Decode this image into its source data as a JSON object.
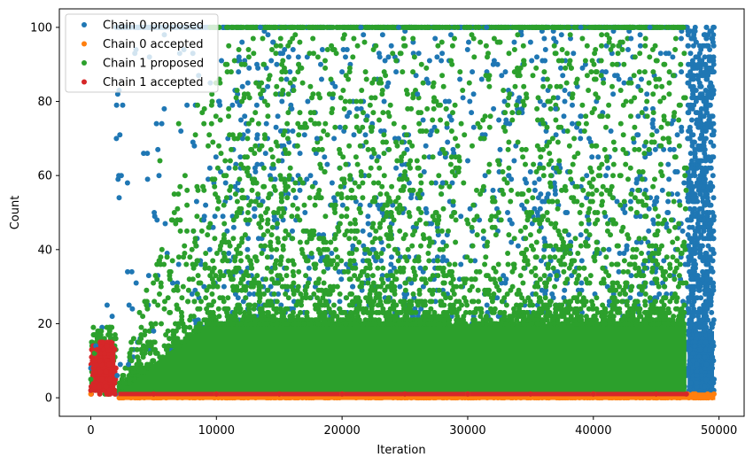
{
  "chart_data": {
    "type": "scatter",
    "title": "",
    "xlabel": "Iteration",
    "ylabel": "Count",
    "xlim": [
      -2500,
      52000
    ],
    "ylim": [
      -5,
      105
    ],
    "xticks": [
      0,
      10000,
      20000,
      30000,
      40000,
      50000
    ],
    "yticks": [
      0,
      20,
      40,
      60,
      80,
      100
    ],
    "grid": false,
    "legend_position": "top-left",
    "series": [
      {
        "name": "Chain 0 proposed",
        "color": "#1f77b4",
        "summary": "dense scatter of proposal counts; near-uniform spread over 1-100 between ~2000 and ~47500, concentrated block 1-60 between ~47500 and ~49600, early cluster 1-25 for 0-2000",
        "points": [
          [
            0,
            8
          ],
          [
            400,
            14
          ],
          [
            900,
            19
          ],
          [
            1300,
            25
          ],
          [
            1700,
            22
          ],
          [
            2100,
            6
          ],
          [
            3000,
            9
          ],
          [
            5000,
            18
          ],
          [
            7000,
            36
          ],
          [
            9000,
            48
          ],
          [
            11000,
            62
          ],
          [
            12500,
            85
          ],
          [
            13500,
            100
          ],
          [
            14500,
            96
          ],
          [
            16000,
            78
          ],
          [
            18000,
            70
          ],
          [
            20000,
            88
          ],
          [
            21500,
            100
          ],
          [
            23000,
            92
          ],
          [
            24500,
            100
          ],
          [
            26000,
            82
          ],
          [
            28000,
            58
          ],
          [
            30000,
            64
          ],
          [
            31500,
            100
          ],
          [
            33000,
            88
          ],
          [
            35000,
            96
          ],
          [
            37000,
            78
          ],
          [
            39000,
            100
          ],
          [
            41000,
            88
          ],
          [
            43000,
            97
          ],
          [
            44500,
            100
          ],
          [
            46000,
            93
          ],
          [
            47500,
            70
          ],
          [
            48000,
            55
          ],
          [
            48500,
            60
          ],
          [
            49000,
            100
          ],
          [
            49500,
            40
          ],
          [
            49600,
            100
          ]
        ]
      },
      {
        "name": "Chain 0 accepted",
        "color": "#ff7f0e",
        "summary": "accepted counts hug 0-1 across the full run to ~49600",
        "points": [
          [
            0,
            1
          ],
          [
            5000,
            0
          ],
          [
            10000,
            1
          ],
          [
            15000,
            0
          ],
          [
            20000,
            1
          ],
          [
            25000,
            0
          ],
          [
            30000,
            1
          ],
          [
            35000,
            0
          ],
          [
            40000,
            1
          ],
          [
            45000,
            0
          ],
          [
            47500,
            1
          ],
          [
            48500,
            0
          ],
          [
            49600,
            1
          ]
        ]
      },
      {
        "name": "Chain 1 proposed",
        "color": "#2ca02c",
        "summary": "dense scatter of proposal counts; solid mass 1-20 from ~2200 to ~47400, decreasing density up to 100; early cluster 1-19 for 0-2000",
        "points": [
          [
            0,
            5
          ],
          [
            300,
            12
          ],
          [
            800,
            18
          ],
          [
            1500,
            19
          ],
          [
            1900,
            16
          ],
          [
            2300,
            4
          ],
          [
            4000,
            13
          ],
          [
            5500,
            64
          ],
          [
            7000,
            74
          ],
          [
            8500,
            79
          ],
          [
            10000,
            100
          ],
          [
            12000,
            90
          ],
          [
            14000,
            100
          ],
          [
            15500,
            88
          ],
          [
            17500,
            77
          ],
          [
            19000,
            82
          ],
          [
            21000,
            100
          ],
          [
            22500,
            94
          ],
          [
            24000,
            100
          ],
          [
            25500,
            100
          ],
          [
            27500,
            80
          ],
          [
            29000,
            60
          ],
          [
            31000,
            55
          ],
          [
            32500,
            96
          ],
          [
            34500,
            90
          ],
          [
            36000,
            84
          ],
          [
            38000,
            100
          ],
          [
            40000,
            100
          ],
          [
            42000,
            95
          ],
          [
            44000,
            100
          ],
          [
            45500,
            100
          ],
          [
            47000,
            100
          ],
          [
            47400,
            62
          ]
        ]
      },
      {
        "name": "Chain 1 accepted",
        "color": "#d62728",
        "summary": "early burst 1-15 for 0-2000, then accepted counts hug 1 to ~47400",
        "points": [
          [
            0,
            2
          ],
          [
            200,
            8
          ],
          [
            500,
            13
          ],
          [
            900,
            15
          ],
          [
            1300,
            14
          ],
          [
            1700,
            11
          ],
          [
            1900,
            4
          ],
          [
            5000,
            1
          ],
          [
            10000,
            1
          ],
          [
            15000,
            1
          ],
          [
            20000,
            1
          ],
          [
            25000,
            1
          ],
          [
            30000,
            1
          ],
          [
            35000,
            1
          ],
          [
            40000,
            1
          ],
          [
            45000,
            1
          ],
          [
            47400,
            1
          ]
        ]
      }
    ]
  }
}
